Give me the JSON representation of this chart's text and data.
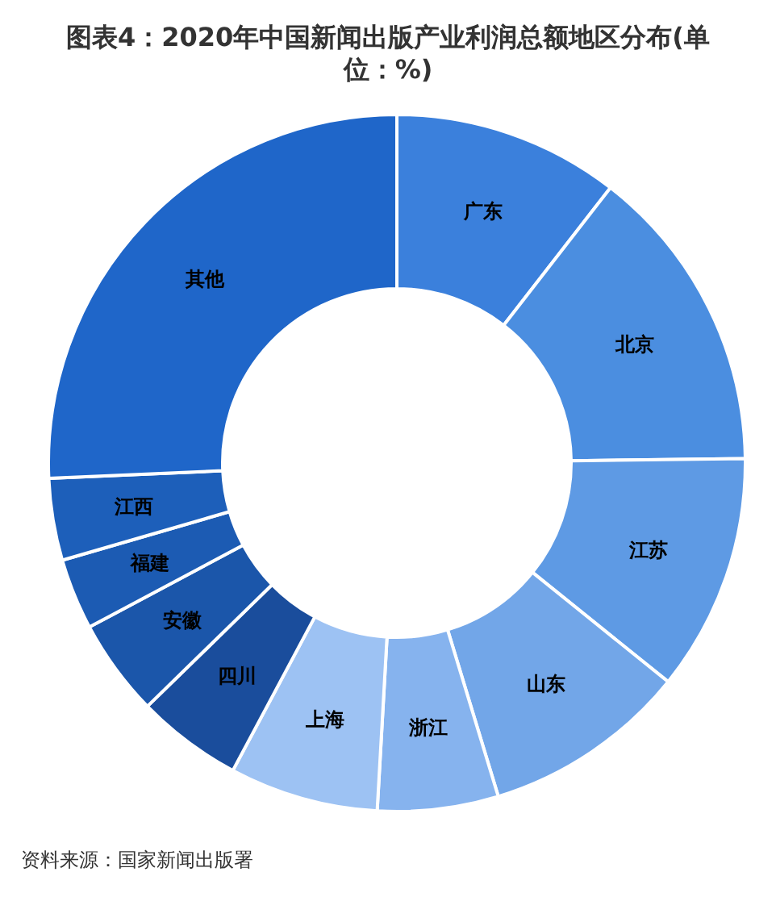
{
  "chart_data": {
    "type": "donut",
    "title": "图表4：2020年中国新闻出版产业利润总额地区分布(单位：%)",
    "categories": [
      "广东",
      "北京",
      "江苏",
      "山东",
      "浙江",
      "上海",
      "四川",
      "安徽",
      "福建",
      "江西",
      "其他"
    ],
    "values": [
      10.5,
      14.3,
      11.0,
      9.5,
      5.6,
      6.9,
      4.9,
      4.5,
      3.3,
      3.8,
      25.7
    ],
    "colors": [
      "#3b80dc",
      "#4b8ee0",
      "#5e9ae4",
      "#72a6e8",
      "#86b3ee",
      "#9dc2f3",
      "#1a4d9c",
      "#1b56aa",
      "#1c5bb3",
      "#1d5fba",
      "#1f66c9"
    ],
    "annotations": [
      "资料来源：国家新闻出版署"
    ]
  }
}
